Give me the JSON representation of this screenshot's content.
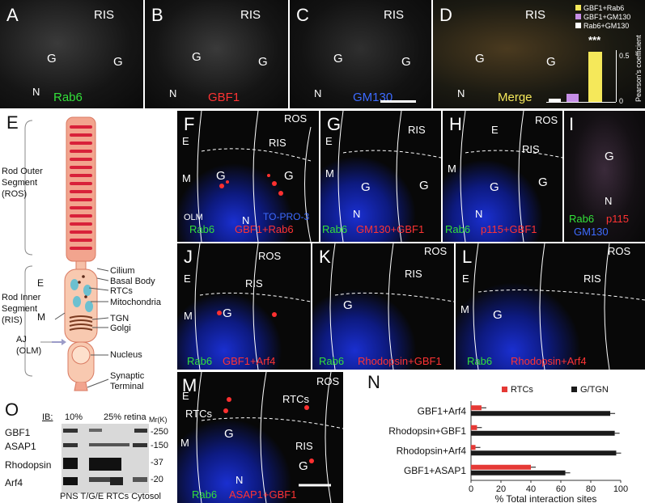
{
  "panels": {
    "A": {
      "letter": "A",
      "region": "RIS",
      "g": "G",
      "n": "N",
      "stain": "Rab6"
    },
    "B": {
      "letter": "B",
      "region": "RIS",
      "g": "G",
      "n": "N",
      "stain": "GBF1"
    },
    "C": {
      "letter": "C",
      "region": "RIS",
      "g": "G",
      "n": "N",
      "stain": "GM130"
    },
    "D": {
      "letter": "D",
      "region": "RIS",
      "g": "G",
      "n": "N",
      "stain": "Merge",
      "legend": [
        "GBF1+Rab6",
        "GBF1+GM130",
        "Rab6+GM130"
      ],
      "stars": "***",
      "ylabel": "Pearson's coefficient",
      "ticks": [
        "0",
        "0.5"
      ]
    },
    "E": {
      "letter": "E",
      "ros": "Rod Outer\nSegment\n(ROS)",
      "ris": "Rod Inner\nSegment\n(RIS)",
      "e": "E",
      "m": "M",
      "aj": "AJ\n(OLM)",
      "parts": [
        "Cilium",
        "Basal Body",
        "RTCs",
        "Mitochondria",
        "TGN",
        "Golgi",
        "Nucleus",
        "Synaptic\nTerminal"
      ]
    },
    "F": {
      "letter": "F",
      "ros": "ROS",
      "ris": "RIS",
      "e": "E",
      "m": "M",
      "g": "G",
      "n": "N",
      "olm": "OLM",
      "topro": "TO-PRO-3",
      "stain_a": "Rab6",
      "stain_b": "GBF1+Rab6"
    },
    "G": {
      "letter": "G",
      "ris": "RIS",
      "e": "E",
      "m": "M",
      "g": "G",
      "n": "N",
      "stain_a": "Rab6",
      "stain_b": "GM130+GBF1"
    },
    "H": {
      "letter": "H",
      "ros": "ROS",
      "ris": "RIS",
      "e": "E",
      "m": "M",
      "g": "G",
      "n": "N",
      "stain_a": "Rab6",
      "stain_b": "p115+GBF1"
    },
    "I": {
      "letter": "I",
      "g": "G",
      "n": "N",
      "stain_a": "Rab6",
      "stain_b": "p115",
      "stain_c": "GM130"
    },
    "J": {
      "letter": "J",
      "ros": "ROS",
      "ris": "RIS",
      "e": "E",
      "m": "M",
      "g": "G",
      "stain_a": "Rab6",
      "stain_b": "GBF1+Arf4"
    },
    "K": {
      "letter": "K",
      "ros": "ROS",
      "ris": "RIS",
      "g": "G",
      "stain_a": "Rab6",
      "stain_b": "Rhodopsin+GBF1"
    },
    "L": {
      "letter": "L",
      "ros": "ROS",
      "ris": "RIS",
      "e": "E",
      "m": "M",
      "g": "G",
      "stain_a": "Rab6",
      "stain_b": "Rhodopsin+Arf4"
    },
    "M": {
      "letter": "M",
      "ros": "ROS",
      "ris": "RIS",
      "e": "E",
      "m": "M",
      "g": "G",
      "n": "N",
      "rtcs": "RTCs",
      "stain_a": "Rab6",
      "stain_b": "ASAP1+GBF1"
    },
    "O": {
      "letter": "O",
      "ib": "IB:",
      "pct1": "10%",
      "pct2": "25% retina",
      "mr": "Mr(K)",
      "rows": [
        "GBF1",
        "ASAP1",
        "Rhodopsin",
        "Arf4"
      ],
      "mw": [
        "-250",
        "-150",
        "-37",
        "-20"
      ],
      "lanes": "PNS T/G/E RTCs Cytosol"
    },
    "N": {
      "letter": "N"
    }
  },
  "chart_data": {
    "type": "bar",
    "orientation": "horizontal",
    "categories": [
      "GBF1+Arf4",
      "Rhodopsin+GBF1",
      "Rhodopsin+Arf4",
      "GBF1+ASAP1"
    ],
    "series": [
      {
        "name": "RTCs",
        "color": "#e53935",
        "values": [
          7,
          4,
          3,
          40
        ]
      },
      {
        "name": "G/TGN",
        "color": "#1a1a1a",
        "values": [
          93,
          96,
          97,
          63
        ]
      }
    ],
    "xlabel": "% Total interaction sites",
    "xlim": [
      0,
      100
    ],
    "xticks": [
      "0",
      "20",
      "40",
      "60",
      "80",
      "100"
    ]
  }
}
